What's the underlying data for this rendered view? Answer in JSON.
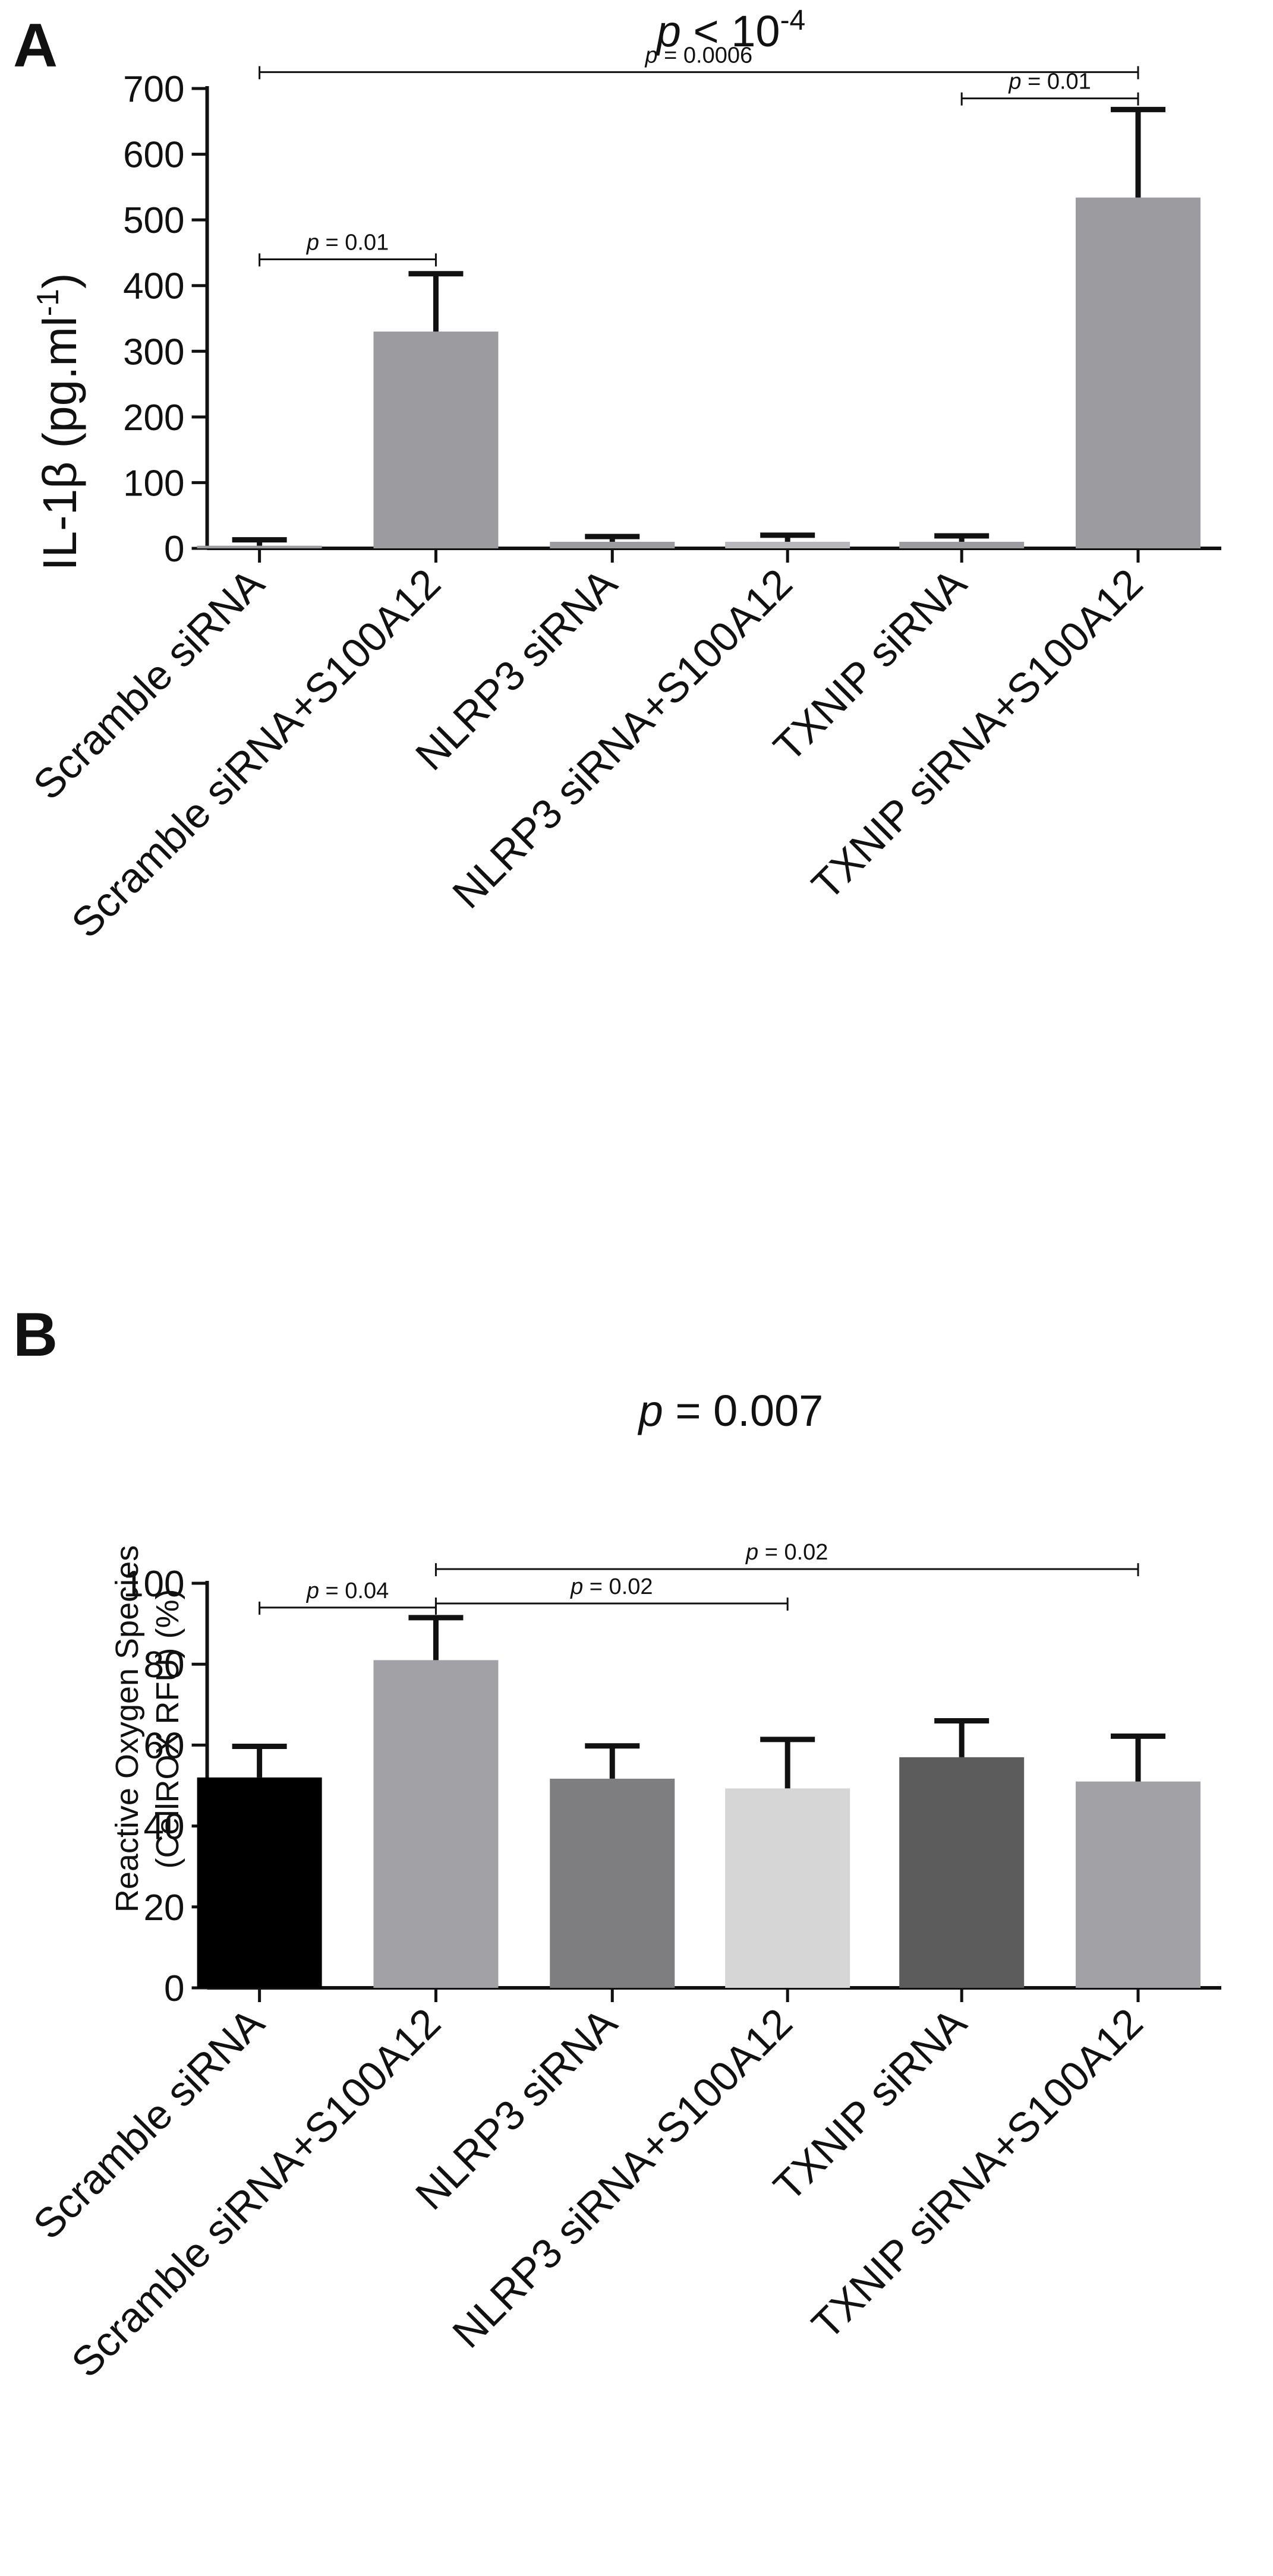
{
  "chart_data": [
    {
      "type": "bar",
      "panel_label": "A",
      "top_label": {
        "p": "p",
        "text": " < 10",
        "sup": "-4"
      },
      "ylabel": {
        "main": "IL-1β (pg.ml",
        "sup": "-1",
        "close": ")"
      },
      "xlabel": "",
      "ylim": [
        0,
        700
      ],
      "yticks": [
        "0",
        "100",
        "200",
        "300",
        "400",
        "500",
        "600",
        "700"
      ],
      "categories": [
        "Scramble siRNA",
        "Scramble siRNA+S100A12",
        "NLRP3 siRNA",
        "NLRP3 siRNA+S100A12",
        "TXNIP siRNA",
        "TXNIP siRNA+S100A12"
      ],
      "values": [
        4,
        330,
        10,
        10,
        10,
        534
      ],
      "errors": [
        9,
        88,
        8,
        10,
        9,
        134
      ],
      "colors": [
        "#9c9ca0",
        "#9c9ca0",
        "#9c9ca0",
        "#b8b8bc",
        "#9c9ca0",
        "#9c9ca0"
      ],
      "comparisons": [
        {
          "from": 0,
          "to": 1,
          "p": "p",
          "text": " = 0.01",
          "level": 440
        },
        {
          "from": 0,
          "to": 5,
          "p": "p",
          "text": " = 0.0006",
          "level": 725
        },
        {
          "from": 4,
          "to": 5,
          "p": "p",
          "text": " = 0.01",
          "level": 685
        }
      ]
    },
    {
      "type": "bar",
      "panel_label": "B",
      "top_label": {
        "p": "p",
        "text": " = 0.007",
        "sup": ""
      },
      "ylabel": {
        "line1": "Reactive Oxygen Species",
        "line2": "(CellROX RFU) (%)"
      },
      "xlabel": "",
      "ylim": [
        0,
        100
      ],
      "yticks": [
        "0",
        "20",
        "40",
        "60",
        "80",
        "100"
      ],
      "categories": [
        "Scramble siRNA",
        "Scramble siRNA+S100A12",
        "NLRP3 siRNA",
        "NLRP3 siRNA+S100A12",
        "TXNIP siRNA",
        "TXNIP siRNA+S100A12"
      ],
      "values": [
        52,
        81,
        51.7,
        49.3,
        57,
        51
      ],
      "errors": [
        7.7,
        10.5,
        8.1,
        12.1,
        9,
        11.2
      ],
      "colors": [
        "#000000",
        "#a2a2a6",
        "#7e7e80",
        "#d6d6d6",
        "#5c5c5c",
        "#a2a2a6"
      ],
      "comparisons": [
        {
          "from": 0,
          "to": 1,
          "p": "p",
          "text": " = 0.04",
          "level": 94
        },
        {
          "from": 1,
          "to": 3,
          "p": "p",
          "text": " = 0.02",
          "level": 95
        },
        {
          "from": 1,
          "to": 5,
          "p": "p",
          "text": " = 0.02",
          "level": 103.5
        }
      ]
    }
  ]
}
